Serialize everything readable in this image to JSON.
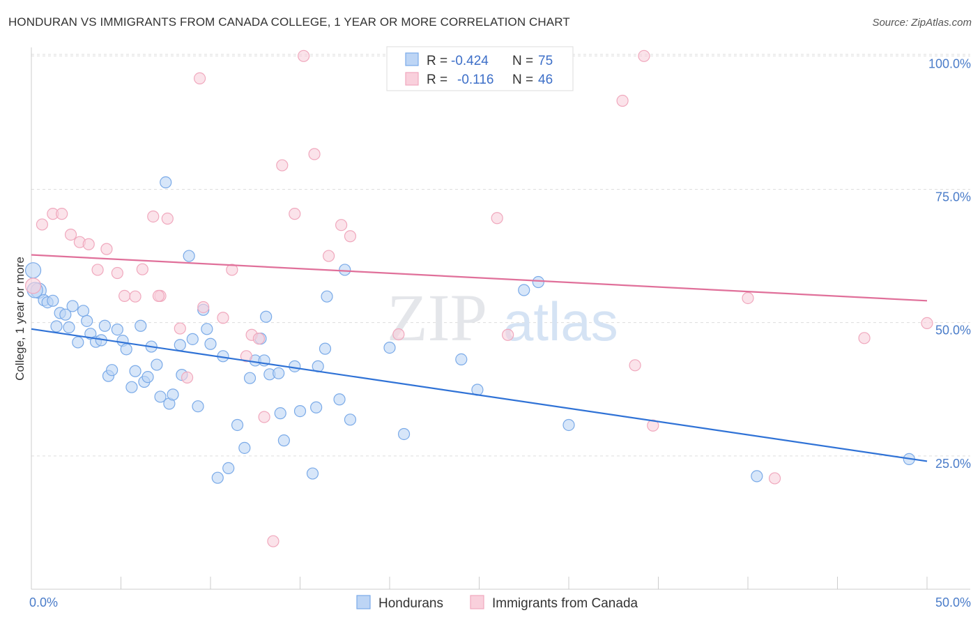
{
  "chart_data": {
    "type": "scatter",
    "title": "HONDURAN VS IMMIGRANTS FROM CANADA COLLEGE, 1 YEAR OR MORE CORRELATION CHART",
    "source": "Source: ZipAtlas.com",
    "xlabel": "",
    "ylabel": "College, 1 year or more",
    "xlim": [
      0,
      50
    ],
    "ylim": [
      0,
      102
    ],
    "x_tick_labels": [
      {
        "value": 0,
        "label": "0.0%"
      },
      {
        "value": 50,
        "label": "50.0%"
      }
    ],
    "y_tick_labels": [
      {
        "value": 25,
        "label": "25.0%"
      },
      {
        "value": 50,
        "label": "50.0%"
      },
      {
        "value": 75,
        "label": "75.0%"
      },
      {
        "value": 100,
        "label": "100.0%"
      }
    ],
    "watermark": {
      "zip": "ZIP",
      "atlas": "atlas"
    },
    "legend": {
      "r_label": "R =",
      "n_label": "N =",
      "entries": [
        {
          "name": "Hondurans",
          "r": "-0.424",
          "n": "75"
        },
        {
          "name": "Immigrants from Canada",
          "r": "-0.116",
          "n": "46"
        }
      ]
    },
    "series": [
      {
        "name": "Hondurans",
        "color": "#7aaae8",
        "fill": "#bdd5f5",
        "trend_color": "#2f72d6",
        "trend": [
          [
            0,
            48.8
          ],
          [
            50,
            24.0
          ]
        ],
        "points": [
          [
            0.1,
            59.8
          ],
          [
            0.4,
            56.0
          ],
          [
            0.7,
            54.2
          ],
          [
            0.9,
            53.8
          ],
          [
            1.2,
            54.1
          ],
          [
            1.4,
            49.3
          ],
          [
            1.6,
            51.8
          ],
          [
            1.9,
            51.5
          ],
          [
            2.1,
            49.1
          ],
          [
            2.3,
            53.1
          ],
          [
            2.6,
            46.3
          ],
          [
            2.9,
            52.2
          ],
          [
            3.1,
            50.3
          ],
          [
            3.3,
            47.9
          ],
          [
            3.6,
            46.4
          ],
          [
            3.9,
            46.7
          ],
          [
            4.1,
            49.4
          ],
          [
            4.3,
            40.0
          ],
          [
            4.5,
            41.1
          ],
          [
            4.8,
            48.7
          ],
          [
            5.1,
            46.6
          ],
          [
            5.3,
            45.0
          ],
          [
            5.6,
            37.9
          ],
          [
            5.8,
            40.9
          ],
          [
            6.1,
            49.4
          ],
          [
            6.3,
            38.9
          ],
          [
            6.5,
            39.8
          ],
          [
            6.7,
            45.5
          ],
          [
            7.0,
            42.1
          ],
          [
            7.2,
            36.1
          ],
          [
            7.5,
            76.3
          ],
          [
            7.7,
            34.8
          ],
          [
            7.9,
            36.5
          ],
          [
            8.3,
            45.8
          ],
          [
            8.4,
            40.2
          ],
          [
            8.8,
            62.5
          ],
          [
            9.0,
            46.9
          ],
          [
            9.3,
            34.3
          ],
          [
            9.6,
            52.4
          ],
          [
            9.8,
            48.8
          ],
          [
            10.0,
            46.0
          ],
          [
            10.7,
            43.7
          ],
          [
            10.4,
            20.9
          ],
          [
            11.0,
            22.7
          ],
          [
            11.5,
            30.8
          ],
          [
            11.9,
            26.5
          ],
          [
            12.2,
            39.6
          ],
          [
            12.5,
            42.9
          ],
          [
            12.8,
            47.0
          ],
          [
            13.0,
            42.9
          ],
          [
            13.1,
            51.1
          ],
          [
            13.3,
            40.3
          ],
          [
            13.8,
            40.5
          ],
          [
            13.9,
            33.0
          ],
          [
            14.1,
            27.9
          ],
          [
            14.7,
            41.8
          ],
          [
            15.0,
            33.4
          ],
          [
            15.7,
            21.7
          ],
          [
            15.9,
            34.1
          ],
          [
            16.0,
            41.8
          ],
          [
            16.4,
            45.1
          ],
          [
            16.5,
            54.9
          ],
          [
            17.2,
            35.6
          ],
          [
            17.5,
            59.9
          ],
          [
            17.8,
            31.8
          ],
          [
            20.0,
            45.3
          ],
          [
            20.8,
            29.1
          ],
          [
            24.0,
            43.1
          ],
          [
            24.9,
            37.4
          ],
          [
            27.5,
            56.1
          ],
          [
            28.3,
            57.6
          ],
          [
            30.0,
            30.8
          ],
          [
            40.5,
            21.2
          ],
          [
            49.0,
            24.4
          ],
          [
            0.2,
            56.1
          ]
        ]
      },
      {
        "name": "Immigrants from Canada",
        "color": "#f0a8bd",
        "fill": "#f9d0dc",
        "trend_color": "#e0709a",
        "trend": [
          [
            0,
            62.7
          ],
          [
            50,
            54.1
          ]
        ],
        "points": [
          [
            0.1,
            56.9
          ],
          [
            0.6,
            68.4
          ],
          [
            1.2,
            70.4
          ],
          [
            1.7,
            70.4
          ],
          [
            2.2,
            66.5
          ],
          [
            2.7,
            65.1
          ],
          [
            3.2,
            64.7
          ],
          [
            3.7,
            59.9
          ],
          [
            4.2,
            63.8
          ],
          [
            4.8,
            59.3
          ],
          [
            5.2,
            55.0
          ],
          [
            5.8,
            54.9
          ],
          [
            6.2,
            60.0
          ],
          [
            6.8,
            69.9
          ],
          [
            7.2,
            55.0
          ],
          [
            7.6,
            69.5
          ],
          [
            8.3,
            48.9
          ],
          [
            8.7,
            39.7
          ],
          [
            9.6,
            52.9
          ],
          [
            10.7,
            50.9
          ],
          [
            11.2,
            59.9
          ],
          [
            12.0,
            43.7
          ],
          [
            12.3,
            47.7
          ],
          [
            13.0,
            32.3
          ],
          [
            13.5,
            9.0
          ],
          [
            14.0,
            79.5
          ],
          [
            14.7,
            70.4
          ],
          [
            15.2,
            100.0
          ],
          [
            15.8,
            81.6
          ],
          [
            16.6,
            62.5
          ],
          [
            17.3,
            68.3
          ],
          [
            17.8,
            66.2
          ],
          [
            9.4,
            95.8
          ],
          [
            20.5,
            47.8
          ],
          [
            26.0,
            69.6
          ],
          [
            26.6,
            47.7
          ],
          [
            33.0,
            91.6
          ],
          [
            33.7,
            42.0
          ],
          [
            34.2,
            100.0
          ],
          [
            34.7,
            30.7
          ],
          [
            40.0,
            54.6
          ],
          [
            41.5,
            20.8
          ],
          [
            46.5,
            47.1
          ],
          [
            50.0,
            49.9
          ],
          [
            12.7,
            47.0
          ],
          [
            7.1,
            55.0
          ]
        ]
      }
    ]
  }
}
